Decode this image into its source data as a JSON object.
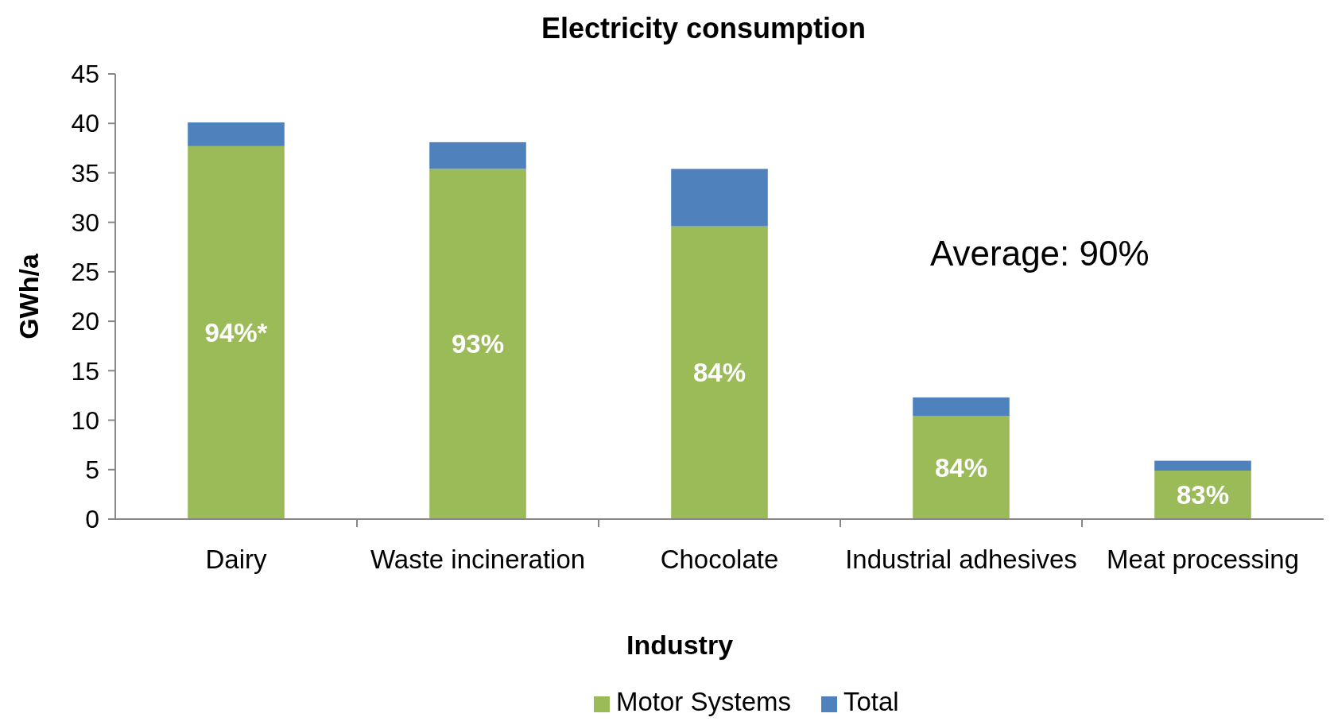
{
  "chart_data": {
    "type": "bar",
    "title": "Electricity consumption",
    "xlabel": "Industry",
    "ylabel": "GWh/a",
    "categories": [
      "Dairy",
      "Waste incineration",
      "Chocolate",
      "Industrial adhesives",
      "Meat processing"
    ],
    "stacked": true,
    "series": [
      {
        "name": "Motor Systems",
        "color": "#9bbb59",
        "values": [
          37.7,
          35.4,
          29.6,
          10.4,
          4.9
        ]
      },
      {
        "name": "Total",
        "color": "#4f81bd",
        "values": [
          2.4,
          2.7,
          5.8,
          1.9,
          1.0
        ]
      }
    ],
    "ylim": [
      0,
      45
    ],
    "yticks": [
      0,
      5,
      10,
      15,
      20,
      25,
      30,
      35,
      40,
      45
    ],
    "grid": false,
    "legend": "bottom",
    "annotations": [
      "Average: 90%",
      "94%*",
      "93%",
      "84%",
      "84%",
      "83%"
    ]
  }
}
